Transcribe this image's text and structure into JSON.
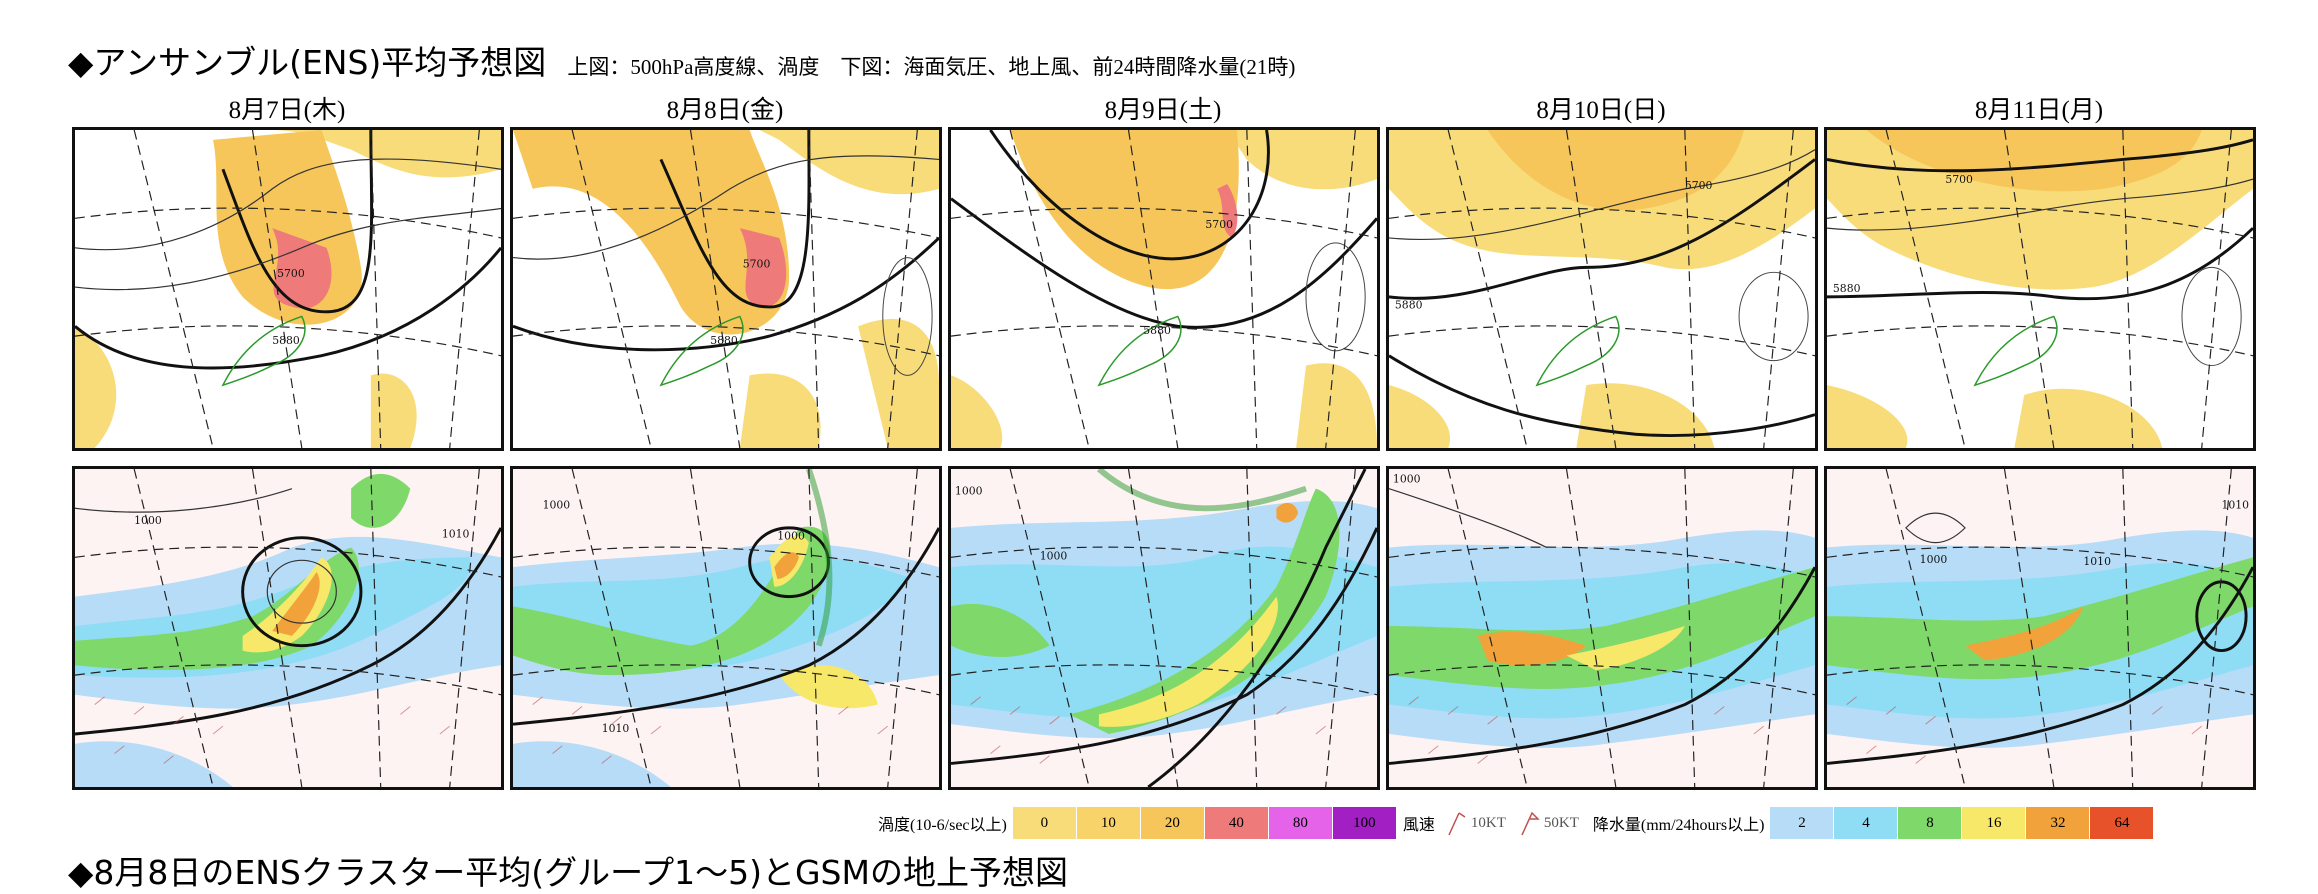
{
  "header": {
    "title": "◆アンサンブル(ENS)平均予想図",
    "subtitle": "上図：500hPa高度線、渦度　下図：海面気圧、地上風、前24時間降水量(21時)"
  },
  "days": [
    {
      "label": "8月7日(木)"
    },
    {
      "label": "8月8日(金)"
    },
    {
      "label": "8月9日(土)"
    },
    {
      "label": "8月10日(日)"
    },
    {
      "label": "8月11日(月)"
    }
  ],
  "upper_contour_labels": {
    "h5700": "5700",
    "h5880": "5880"
  },
  "lower_isobar_labels": {
    "p1000": "1000",
    "p1010": "1010"
  },
  "legend": {
    "vorticity_label": "渦度(10-6/sec以上)",
    "vorticity": [
      {
        "value": "0",
        "color": "#f9dc7a"
      },
      {
        "value": "10",
        "color": "#f8d36a"
      },
      {
        "value": "20",
        "color": "#f6c65a"
      },
      {
        "value": "40",
        "color": "#ee7a7a"
      },
      {
        "value": "80",
        "color": "#e563e8"
      },
      {
        "value": "100",
        "color": "#a21fc4"
      }
    ],
    "wind_label": "風速",
    "wind_10kt": "10KT",
    "wind_50kt": "50KT",
    "precip_label": "降水量(mm/24hours以上)",
    "precip": [
      {
        "value": "2",
        "color": "#b7dcf8"
      },
      {
        "value": "4",
        "color": "#8fdcf5"
      },
      {
        "value": "8",
        "color": "#7fd96a"
      },
      {
        "value": "16",
        "color": "#f7e86a"
      },
      {
        "value": "32",
        "color": "#f2a23a"
      },
      {
        "value": "64",
        "color": "#e8522a"
      }
    ]
  },
  "footer_cut": "◆8月8日のENSクラスター平均(グループ1～5)とGSMの地上予想図"
}
